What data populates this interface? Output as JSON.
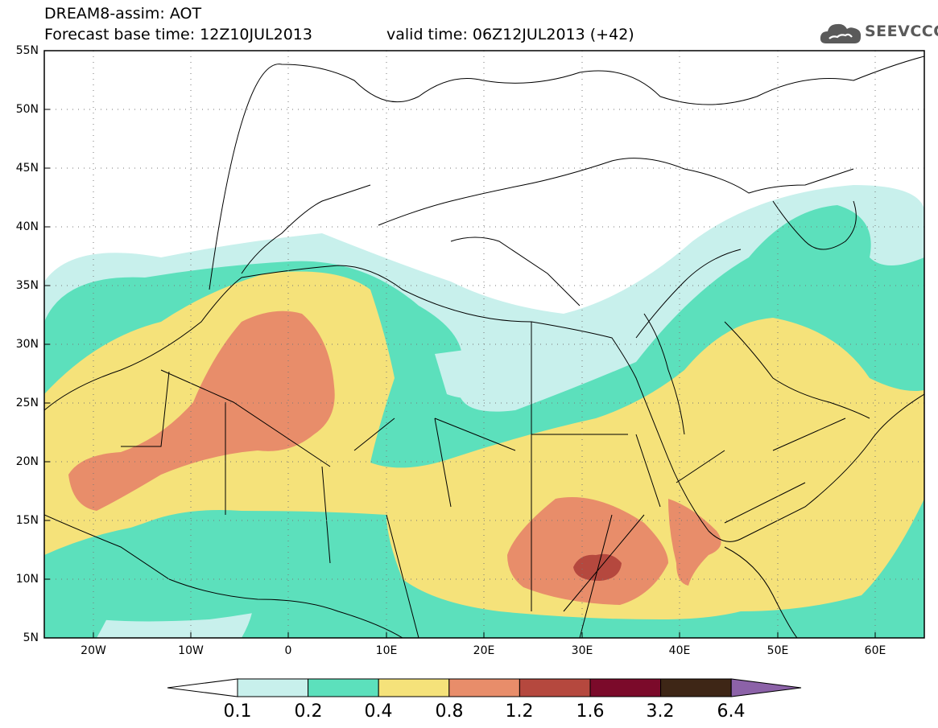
{
  "header": {
    "title": "DREAM8-assim: AOT",
    "base_time": "Forecast base time: 12Z10JUL2013",
    "valid_time": "valid time: 06Z12JUL2013 (+42)"
  },
  "logo": {
    "text": "SEEVCCC",
    "icon": "cloud-icon"
  },
  "map": {
    "lat_labels": [
      "55N",
      "50N",
      "45N",
      "40N",
      "35N",
      "30N",
      "25N",
      "20N",
      "15N",
      "10N",
      "5N"
    ],
    "lon_labels": [
      "20W",
      "10W",
      "0",
      "10E",
      "20E",
      "30E",
      "40E",
      "50E",
      "60E"
    ],
    "lon_range": [
      -25,
      65
    ],
    "lat_range": [
      5,
      55
    ]
  },
  "colorbar": {
    "levels": [
      "0.1",
      "0.2",
      "0.4",
      "0.8",
      "1.2",
      "1.6",
      "3.2",
      "6.4"
    ],
    "colors": [
      "#ffffff",
      "#c8f0ec",
      "#5ce0bc",
      "#f5e27a",
      "#e88d6a",
      "#b5483e",
      "#7b0a2a",
      "#3e2616",
      "#8c62a8"
    ]
  }
}
